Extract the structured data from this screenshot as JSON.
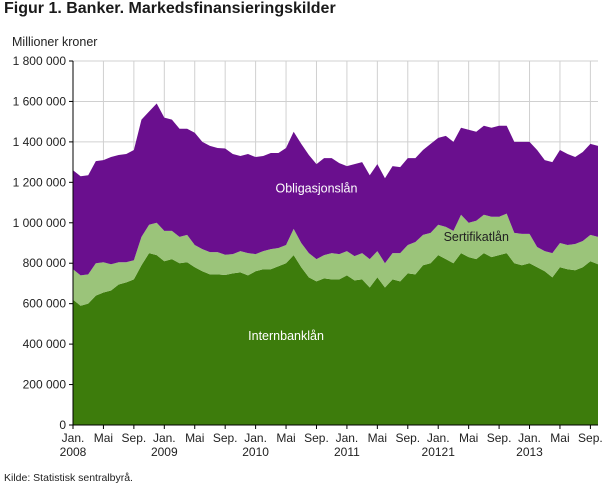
{
  "title": "Figur 1. Banker. Markedsfinansieringskilder",
  "source": "Kilde: Statistisk sentralbyrå.",
  "colors": {
    "internbanklan": "#3d7c0c",
    "sertifikatlan": "#9bc47a",
    "obligasjonslan": "#6a0f8e",
    "grid": "#d0d0d0",
    "axis": "#000000"
  },
  "chart_data": {
    "type": "area",
    "stacked": true,
    "ylabel": "Millioner kroner",
    "ylim": [
      0,
      1800000
    ],
    "yticks": [
      0,
      200000,
      400000,
      600000,
      800000,
      1000000,
      1200000,
      1400000,
      1600000,
      1800000
    ],
    "ytick_labels": [
      "0",
      "200 000",
      "400 000",
      "600 000",
      "800 000",
      "1 000 000",
      "1 200 000",
      "1 400 000",
      "1 600 000",
      "1 800 000"
    ],
    "x_start": "2008-01",
    "x_end": "2013-09",
    "xticks": [
      {
        "label": "Jan.",
        "sub": "2008",
        "month": "2008-01"
      },
      {
        "label": "Mai",
        "sub": "",
        "month": "2008-05"
      },
      {
        "label": "Sep.",
        "sub": "",
        "month": "2008-09"
      },
      {
        "label": "Jan.",
        "sub": "2009",
        "month": "2009-01"
      },
      {
        "label": "Mai",
        "sub": "",
        "month": "2009-05"
      },
      {
        "label": "Sep.",
        "sub": "",
        "month": "2009-09"
      },
      {
        "label": "Jan.",
        "sub": "2010",
        "month": "2010-01"
      },
      {
        "label": "Mai",
        "sub": "",
        "month": "2010-05"
      },
      {
        "label": "Sep.",
        "sub": "",
        "month": "2010-09"
      },
      {
        "label": "Jan.",
        "sub": "2011",
        "month": "2011-01"
      },
      {
        "label": "Mai",
        "sub": "",
        "month": "2011-05"
      },
      {
        "label": "Sep.",
        "sub": "",
        "month": "2011-09"
      },
      {
        "label": "Jan.",
        "sub": "20121",
        "month": "2012-01"
      },
      {
        "label": "Mai",
        "sub": "",
        "month": "2012-05"
      },
      {
        "label": "Sep.",
        "sub": "",
        "month": "2012-09"
      },
      {
        "label": "Jan.",
        "sub": "2013",
        "month": "2013-01"
      },
      {
        "label": "Mai",
        "sub": "",
        "month": "2013-05"
      },
      {
        "label": "Sep.",
        "sub": "",
        "month": "2013-09"
      }
    ],
    "series": [
      {
        "name": "Internbanklån",
        "key": "internbanklan",
        "values": [
          620000,
          590000,
          600000,
          640000,
          655000,
          665000,
          695000,
          705000,
          720000,
          790000,
          850000,
          840000,
          810000,
          820000,
          800000,
          805000,
          780000,
          760000,
          745000,
          745000,
          742000,
          750000,
          755000,
          740000,
          760000,
          770000,
          770000,
          785000,
          800000,
          840000,
          780000,
          730000,
          710000,
          725000,
          720000,
          720000,
          740000,
          715000,
          720000,
          680000,
          730000,
          680000,
          720000,
          710000,
          750000,
          745000,
          790000,
          800000,
          840000,
          820000,
          800000,
          850000,
          830000,
          820000,
          850000,
          830000,
          840000,
          850000,
          800000,
          790000,
          800000,
          780000,
          760000,
          730000,
          780000,
          770000,
          765000,
          780000,
          810000,
          795000
        ]
      },
      {
        "name": "Sertifikatlån",
        "key": "sertifikatlan",
        "values": [
          150000,
          150000,
          145000,
          160000,
          150000,
          130000,
          110000,
          100000,
          95000,
          140000,
          140000,
          160000,
          150000,
          140000,
          130000,
          135000,
          110000,
          110000,
          110000,
          110000,
          100000,
          95000,
          105000,
          110000,
          85000,
          90000,
          100000,
          90000,
          90000,
          130000,
          120000,
          120000,
          110000,
          115000,
          130000,
          125000,
          120000,
          120000,
          130000,
          140000,
          130000,
          120000,
          130000,
          140000,
          140000,
          160000,
          150000,
          150000,
          150000,
          160000,
          160000,
          190000,
          170000,
          190000,
          190000,
          200000,
          190000,
          195000,
          150000,
          155000,
          145000,
          100000,
          100000,
          120000,
          120000,
          120000,
          130000,
          130000,
          130000,
          135000
        ]
      },
      {
        "name": "Obligasjonslån",
        "key": "obligasjonslan",
        "values": [
          490000,
          490000,
          490000,
          505000,
          505000,
          530000,
          530000,
          535000,
          545000,
          580000,
          560000,
          590000,
          560000,
          550000,
          535000,
          525000,
          555000,
          530000,
          525000,
          515000,
          525000,
          495000,
          470000,
          490000,
          480000,
          470000,
          475000,
          470000,
          480000,
          480000,
          490000,
          485000,
          470000,
          480000,
          470000,
          450000,
          420000,
          455000,
          450000,
          415000,
          430000,
          420000,
          430000,
          425000,
          430000,
          415000,
          420000,
          440000,
          430000,
          450000,
          440000,
          430000,
          460000,
          440000,
          440000,
          440000,
          450000,
          435000,
          450000,
          455000,
          455000,
          480000,
          450000,
          450000,
          460000,
          450000,
          430000,
          440000,
          450000,
          450000
        ]
      }
    ],
    "area_labels": [
      {
        "series": "obligasjonslan",
        "text": "Obligasjonslån",
        "month": "2010-09",
        "value": 1150000,
        "color": "#ffffff"
      },
      {
        "series": "sertifikatlan",
        "text": "Sertifikatlån",
        "month": "2012-06",
        "value": 910000,
        "color": "#222222"
      },
      {
        "series": "internbanklan",
        "text": "Internbanklån",
        "month": "2010-05",
        "value": 420000,
        "color": "#ffffff"
      }
    ]
  }
}
